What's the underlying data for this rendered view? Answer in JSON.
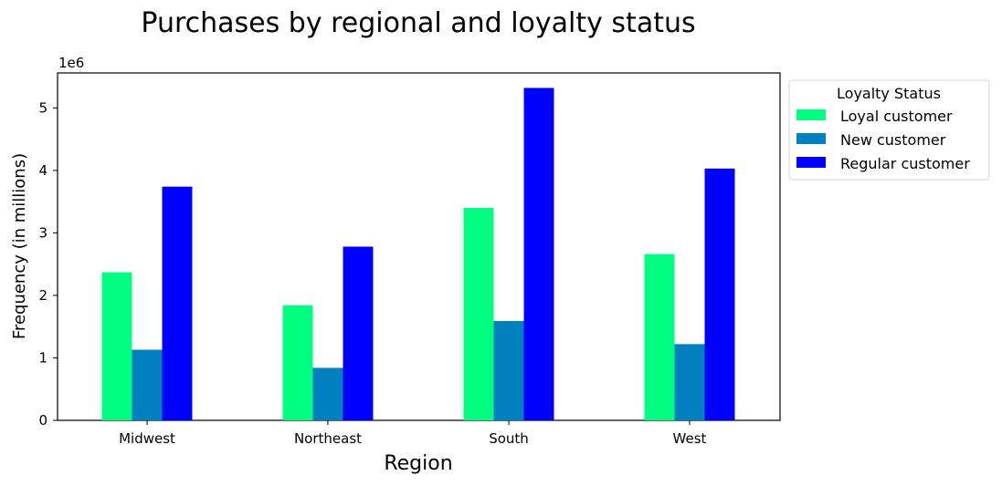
{
  "chart_data": {
    "type": "bar",
    "title": "Purchases by regional and loyalty status",
    "xlabel": "Region",
    "ylabel": "Frequency (in millions)",
    "y_offset_label": "1e6",
    "categories": [
      "Midwest",
      "Northeast",
      "South",
      "West"
    ],
    "series": [
      {
        "name": "Loyal customer",
        "color": "#00ff80",
        "values": [
          2370000,
          1840000,
          3400000,
          2660000
        ]
      },
      {
        "name": "New customer",
        "color": "#0080bf",
        "values": [
          1130000,
          840000,
          1590000,
          1220000
        ]
      },
      {
        "name": "Regular customer",
        "color": "#0000ff",
        "values": [
          3740000,
          2780000,
          5320000,
          4030000
        ]
      }
    ],
    "ylim": [
      0,
      5560000
    ],
    "y_ticks": [
      0,
      1000000,
      2000000,
      3000000,
      4000000,
      5000000
    ],
    "y_tick_labels": [
      "0",
      "1",
      "2",
      "3",
      "4",
      "5"
    ],
    "legend": {
      "title": "Loyalty Status",
      "placement": "outside-upper-right"
    },
    "grid": false
  }
}
